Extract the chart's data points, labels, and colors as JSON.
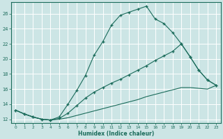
{
  "xlabel": "Humidex (Indice chaleur)",
  "bg_color": "#cce5e5",
  "line_color": "#1a6b5a",
  "grid_color": "#ffffff",
  "xlim": [
    -0.5,
    23.5
  ],
  "ylim": [
    11.5,
    27.5
  ],
  "xticks": [
    0,
    1,
    2,
    3,
    4,
    5,
    6,
    7,
    8,
    9,
    10,
    11,
    12,
    13,
    14,
    15,
    16,
    17,
    18,
    19,
    20,
    21,
    22,
    23
  ],
  "yticks": [
    12,
    14,
    16,
    18,
    20,
    22,
    24,
    26
  ],
  "curve1_x": [
    0,
    1,
    2,
    3,
    4,
    5,
    6,
    7,
    8,
    9,
    10,
    11,
    12,
    13,
    14,
    15,
    16,
    17,
    18,
    19,
    20,
    21,
    22,
    23
  ],
  "curve1_y": [
    13.2,
    12.7,
    12.3,
    12.0,
    11.9,
    12.3,
    14.0,
    15.8,
    17.8,
    20.5,
    22.3,
    24.5,
    25.8,
    26.2,
    26.6,
    27.0,
    25.3,
    24.7,
    23.5,
    22.0,
    20.3,
    18.5,
    17.2,
    16.5
  ],
  "curve2_x": [
    0,
    1,
    2,
    3,
    4,
    5,
    6,
    7,
    8,
    9,
    10,
    11,
    12,
    13,
    14,
    15,
    16,
    17,
    18,
    19,
    20,
    21,
    22,
    23
  ],
  "curve2_y": [
    13.2,
    12.7,
    12.3,
    12.0,
    11.9,
    12.1,
    12.8,
    13.8,
    14.8,
    15.6,
    16.2,
    16.8,
    17.3,
    17.9,
    18.5,
    19.1,
    19.8,
    20.4,
    21.0,
    22.0,
    20.3,
    18.5,
    17.2,
    16.5
  ],
  "curve3_x": [
    0,
    1,
    2,
    3,
    4,
    5,
    6,
    7,
    8,
    9,
    10,
    11,
    12,
    13,
    14,
    15,
    16,
    17,
    18,
    19,
    20,
    21,
    22,
    23
  ],
  "curve3_y": [
    13.2,
    12.7,
    12.3,
    12.0,
    11.9,
    12.0,
    12.2,
    12.5,
    12.8,
    13.1,
    13.4,
    13.7,
    14.0,
    14.3,
    14.6,
    15.0,
    15.3,
    15.6,
    15.9,
    16.2,
    16.2,
    16.1,
    16.0,
    16.5
  ]
}
